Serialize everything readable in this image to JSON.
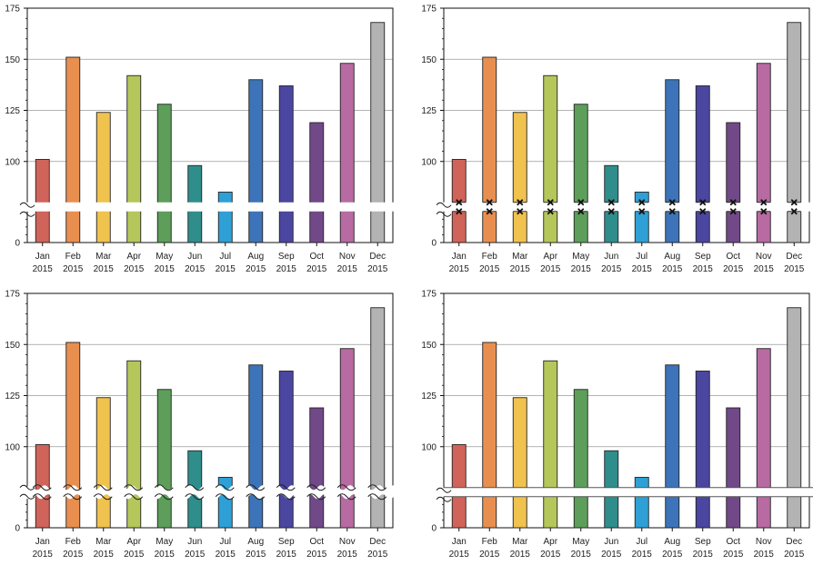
{
  "chart_data": {
    "type": "bar",
    "categories": [
      "Jan",
      "Feb",
      "Mar",
      "Apr",
      "May",
      "Jun",
      "Jul",
      "Aug",
      "Sep",
      "Oct",
      "Nov",
      "Dec"
    ],
    "category_year": "2015",
    "values": [
      101,
      151,
      124,
      142,
      128,
      98,
      85,
      140,
      137,
      119,
      148,
      168
    ],
    "bar_colors": [
      "#d0645a",
      "#e88f50",
      "#f0c24e",
      "#b5c75b",
      "#5c9e5a",
      "#2f8e8c",
      "#2ea0d6",
      "#3d74b9",
      "#4b46a0",
      "#714989",
      "#b86aa2",
      "#b3b3b3"
    ],
    "y_axis": {
      "ticks": [
        0,
        100,
        125,
        150,
        175
      ],
      "scale_break": {
        "from": 0,
        "to": 80
      },
      "ylim": [
        0,
        175
      ]
    },
    "grid": true,
    "panels": [
      {
        "id": "flat-break",
        "break_style": "gap"
      },
      {
        "id": "x-marked-break",
        "break_style": "cross"
      },
      {
        "id": "wavy-break",
        "break_style": "wave"
      },
      {
        "id": "band-break",
        "break_style": "band"
      }
    ]
  }
}
